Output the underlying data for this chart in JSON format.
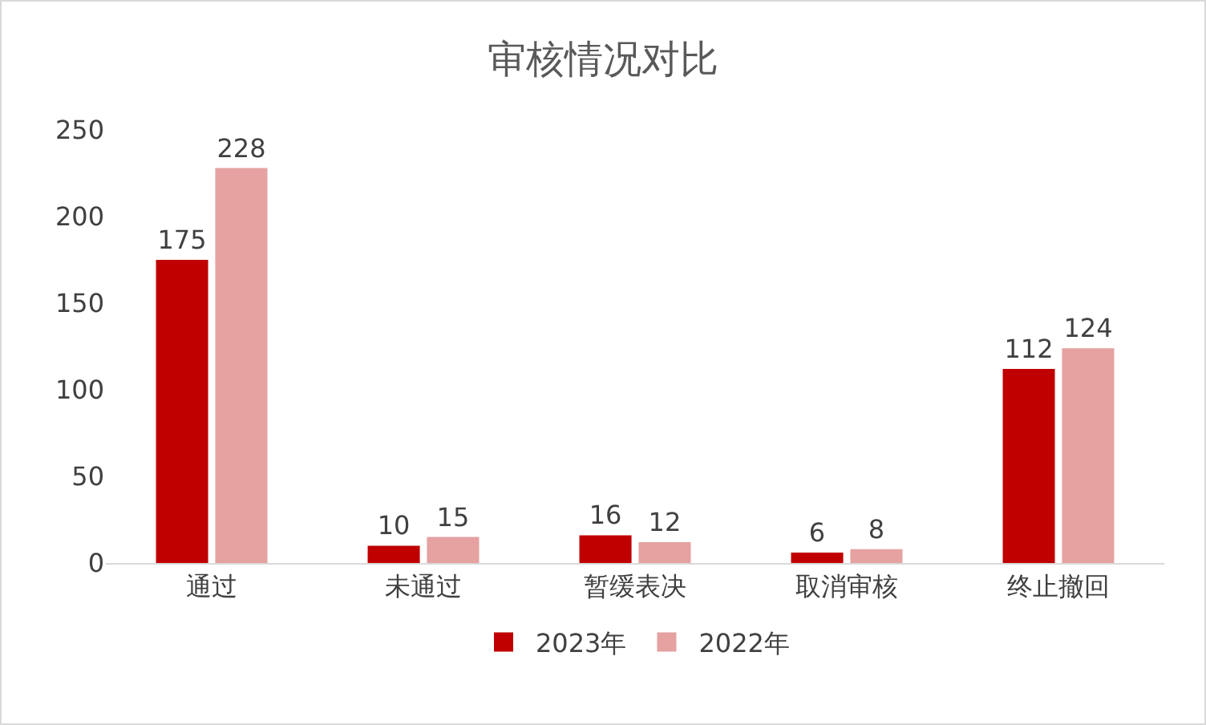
{
  "chart_data": {
    "type": "bar",
    "title": "审核情况对比",
    "categories": [
      "通过",
      "未通过",
      "暂缓表决",
      "取消审核",
      "终止撤回"
    ],
    "series": [
      {
        "name": "2023年",
        "color": "#c00000",
        "values": [
          175,
          10,
          16,
          6,
          112
        ]
      },
      {
        "name": "2022年",
        "color": "#e6a1a1",
        "values": [
          228,
          15,
          12,
          8,
          124
        ]
      }
    ],
    "ylim": [
      0,
      250
    ],
    "yticks": [
      0,
      50,
      100,
      150,
      200,
      250
    ],
    "grid": false,
    "legend": "bottom",
    "data_labels": true
  }
}
